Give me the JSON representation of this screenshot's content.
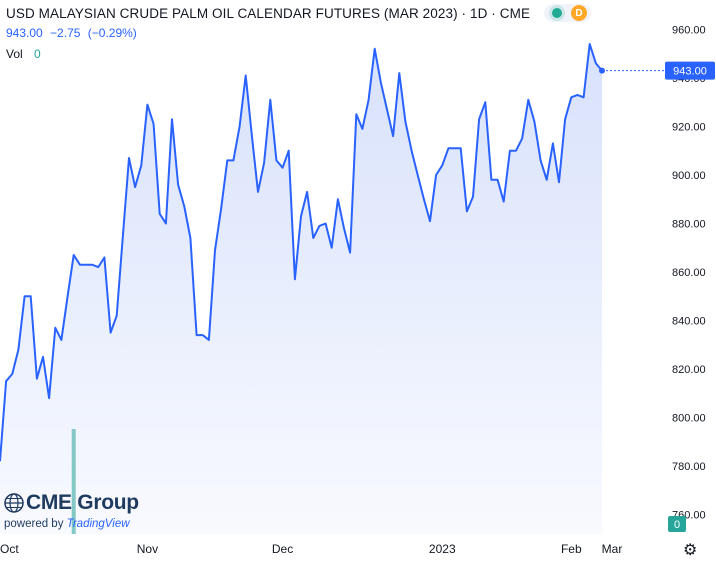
{
  "header": {
    "title": "USD MALAYSIAN CRUDE PALM OIL CALENDAR FUTURES (MAR 2023) · 1D · CME",
    "price": "943.00",
    "change": "−2.75",
    "change_pct": "(−0.29%)",
    "vol_label": "Vol",
    "vol_value": "0",
    "badge": "D"
  },
  "branding": {
    "logo_text": "CME Group",
    "powered_by": "powered by",
    "powered_brand": "TradingView"
  },
  "colors": {
    "line": "#2962ff",
    "area_top": "#a9bef7",
    "vol_up": "#7fc9bf",
    "vol_down": "#ef9a9a",
    "price_tag": "#2962ff",
    "vol_tag": "#26a69a"
  },
  "chart_data": {
    "type": "line",
    "title": "USD MALAYSIAN CRUDE PALM OIL CALENDAR FUTURES (MAR 2023) · 1D · CME",
    "ylim": [
      752,
      968
    ],
    "y_ticks": [
      "960.00",
      "940.00",
      "920.00",
      "900.00",
      "880.00",
      "860.00",
      "840.00",
      "820.00",
      "800.00",
      "780.00",
      "760.00"
    ],
    "x_ticks": [
      "Oct",
      "Nov",
      "Dec",
      "2023",
      "Feb",
      "Mar"
    ],
    "last_price_label": "943.00",
    "volume_label": "0",
    "series": [
      {
        "values": [
          782,
          815,
          818,
          828,
          850,
          850,
          816,
          825,
          808,
          837,
          832,
          850,
          867,
          863,
          863,
          863,
          862,
          866,
          835,
          842,
          875,
          907,
          895,
          904,
          929,
          921,
          884,
          880,
          923,
          896,
          887,
          874,
          834,
          834,
          832,
          869,
          886,
          906,
          906,
          920,
          941,
          916,
          893,
          905,
          931,
          906,
          903,
          910,
          857,
          883,
          893,
          874,
          879,
          880,
          870,
          890,
          878,
          868,
          925,
          919,
          931,
          952,
          938,
          927,
          916,
          942,
          922,
          910,
          900,
          890,
          881,
          900,
          904,
          911,
          911,
          911,
          885,
          891,
          923,
          930,
          898,
          898,
          889,
          910,
          910,
          915,
          931,
          922,
          906,
          898,
          913,
          897,
          923,
          932,
          933,
          932,
          954,
          946,
          943
        ]
      }
    ],
    "volume": [
      0,
      0,
      0,
      0,
      0,
      0,
      0,
      0,
      0,
      0,
      0,
      0,
      90,
      0,
      0,
      0,
      0,
      0,
      0,
      0,
      0,
      0,
      0,
      0,
      0,
      0,
      0,
      0,
      0,
      0,
      0,
      0,
      0,
      0,
      0,
      0,
      0,
      0,
      0,
      0,
      0,
      0,
      0,
      0,
      0,
      0,
      0,
      0,
      0,
      0,
      0,
      0,
      0,
      0,
      0,
      0,
      0,
      0,
      0,
      0,
      0,
      0,
      0,
      0,
      0,
      0,
      0,
      0,
      0,
      0,
      0,
      0,
      0,
      0,
      0,
      0,
      0,
      0,
      0,
      0,
      0,
      0,
      0,
      0,
      0,
      0,
      0,
      0,
      0,
      0,
      0,
      0,
      0,
      0,
      0,
      0,
      0,
      0,
      0
    ]
  }
}
